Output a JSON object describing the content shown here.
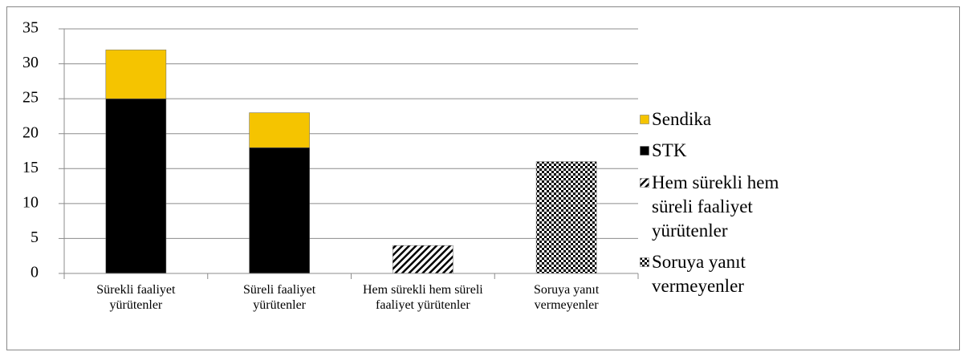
{
  "chart_data": {
    "type": "stacked_bar",
    "categories": [
      "Sürekli faaliyet yürütenler",
      "Süreli faaliyet yürütenler",
      "Hem sürekli hem süreli faaliyet yürütenler",
      "Soruya yanıt vermeyenler"
    ],
    "series": [
      {
        "name": "Sendika",
        "color": "#f5c400",
        "values": [
          7,
          5,
          null,
          null
        ]
      },
      {
        "name": "STK",
        "color": "#000000",
        "values": [
          25,
          18,
          null,
          null
        ]
      },
      {
        "name": "Hem sürekli hem süreli faaliyet yürütenler",
        "color": "#000000",
        "pattern": "diagonal",
        "values": [
          null,
          null,
          4,
          null
        ]
      },
      {
        "name": "Soruya yanıt vermeyenler",
        "color": "#000000",
        "pattern": "checker",
        "values": [
          null,
          null,
          null,
          16
        ]
      }
    ],
    "ylim": [
      0,
      35
    ],
    "yticks": [
      0,
      5,
      10,
      15,
      20,
      25,
      30,
      35
    ],
    "grid": true,
    "legend": "right"
  }
}
